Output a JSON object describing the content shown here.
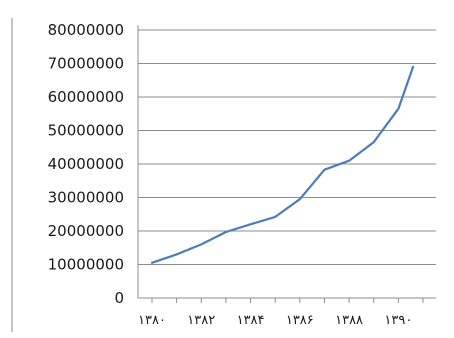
{
  "chart_data": {
    "type": "line",
    "title": "",
    "xlabel": "",
    "ylabel": "",
    "ylim": [
      0,
      80000000
    ],
    "grid": true,
    "legend": "none",
    "y_ticks": [
      "0",
      "10000000",
      "20000000",
      "30000000",
      "40000000",
      "50000000",
      "60000000",
      "70000000",
      "80000000"
    ],
    "x_ticks": [
      "۱۳۸۰",
      "۱۳۸۲",
      "۱۳۸۴",
      "۱۳۸۶",
      "۱۳۸۸",
      "۱۳۹۰"
    ],
    "series": [
      {
        "color": "#4a7ebb",
        "x": [
          1380,
          1381,
          1382,
          1383,
          1384,
          1385,
          1386,
          1387,
          1388,
          1389,
          1390
        ],
        "values": [
          10500000,
          13000000,
          16000000,
          19700000,
          22000000,
          24200000,
          29500000,
          38300000,
          41000000,
          46500000,
          56500000
        ]
      }
    ],
    "last_point": {
      "x": 1390.6,
      "y": 69000000
    }
  }
}
